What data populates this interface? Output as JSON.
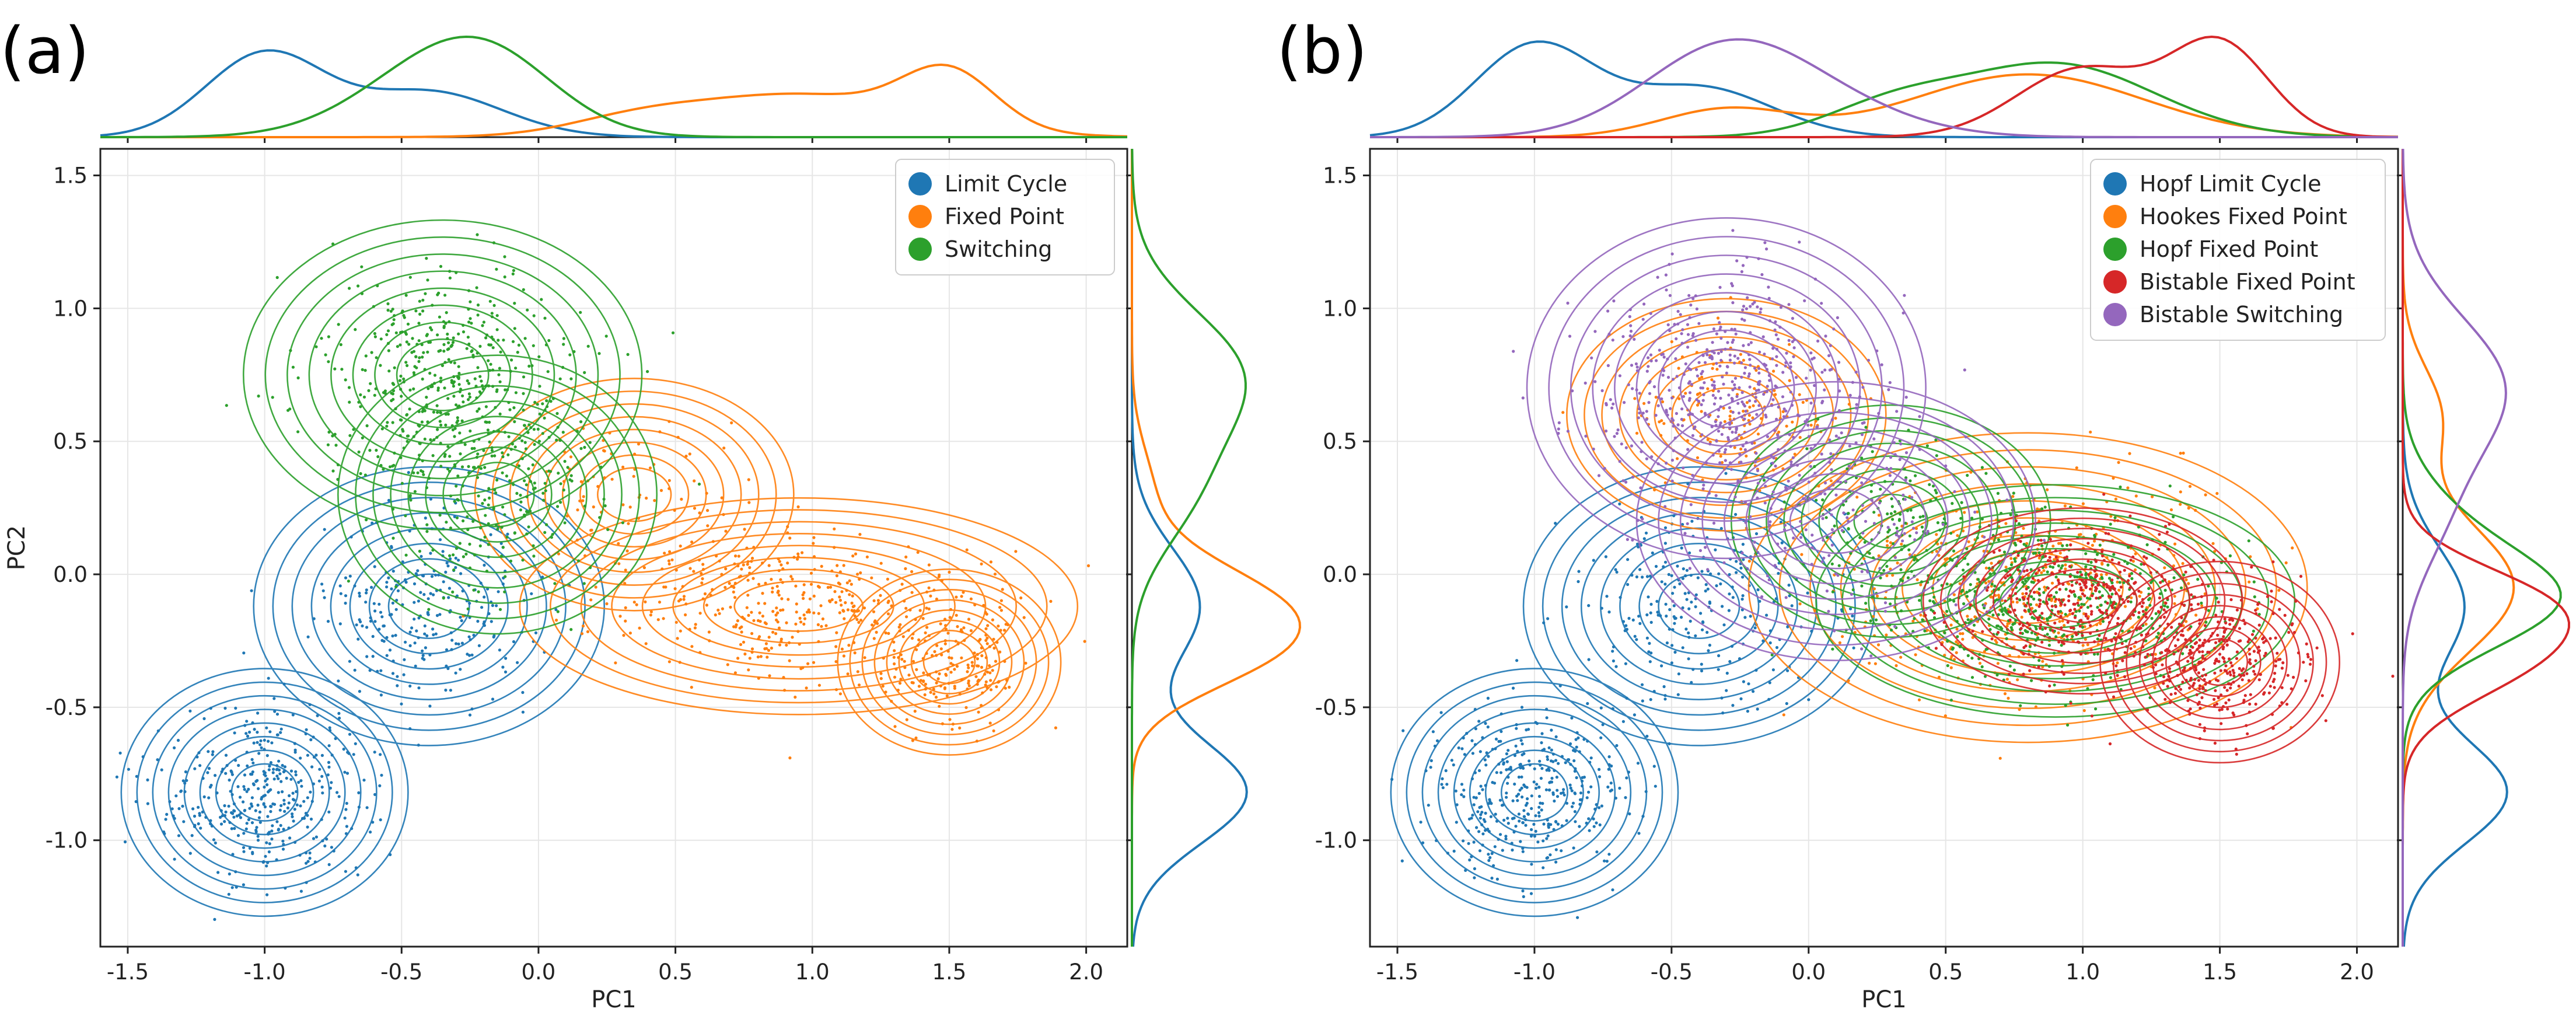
{
  "chart_data": [
    {
      "type": "scatter",
      "panel_label": "(a)",
      "xlabel": "PC1",
      "ylabel": "PC2",
      "xlim": [
        -1.6,
        2.15
      ],
      "ylim": [
        -1.4,
        1.6
      ],
      "x_ticks": [
        "-1.5",
        "-1.0",
        "-0.5",
        "0.0",
        "0.5",
        "1.0",
        "1.5",
        "2.0"
      ],
      "y_ticks": [
        "-1.0",
        "-0.5",
        "0.0",
        "0.5",
        "1.0",
        "1.5"
      ],
      "grid": true,
      "legend_position": "top-right",
      "overlay": "density contours with marginal KDE curves on top and right",
      "series": [
        {
          "name": "Limit Cycle",
          "color": "#1f77b4",
          "clusters": [
            {
              "x": -1.0,
              "y": -0.82,
              "sx": 0.18,
              "sy": 0.16,
              "w": 0.6
            },
            {
              "x": -0.4,
              "y": -0.12,
              "sx": 0.22,
              "sy": 0.18,
              "w": 0.4
            }
          ],
          "kde_x_peaks": [
            -1.05,
            -0.45
          ],
          "kde_y_peaks": [
            -0.85,
            -0.1
          ]
        },
        {
          "name": "Fixed Point",
          "color": "#ff7f0e",
          "clusters": [
            {
              "x": 0.95,
              "y": -0.12,
              "sx": 0.35,
              "sy": 0.14,
              "w": 0.6
            },
            {
              "x": 1.5,
              "y": -0.33,
              "sx": 0.14,
              "sy": 0.12,
              "w": 0.3
            },
            {
              "x": 0.35,
              "y": 0.3,
              "sx": 0.2,
              "sy": 0.15,
              "w": 0.1
            }
          ],
          "kde_x_peaks": [
            0.95,
            1.5
          ],
          "kde_y_peaks": [
            -0.1,
            -0.33
          ]
        },
        {
          "name": "Switching",
          "color": "#2ca02c",
          "clusters": [
            {
              "x": -0.35,
              "y": 0.75,
              "sx": 0.25,
              "sy": 0.2,
              "w": 0.7
            },
            {
              "x": -0.15,
              "y": 0.3,
              "sx": 0.2,
              "sy": 0.18,
              "w": 0.3
            }
          ],
          "kde_x_peaks": [
            -0.3
          ],
          "kde_y_peaks": [
            0.6
          ]
        }
      ]
    },
    {
      "type": "scatter",
      "panel_label": "(b)",
      "xlabel": "PC1",
      "ylabel": "",
      "xlim": [
        -1.6,
        2.15
      ],
      "ylim": [
        -1.4,
        1.6
      ],
      "x_ticks": [
        "-1.5",
        "-1.0",
        "-0.5",
        "0.0",
        "0.5",
        "1.0",
        "1.5",
        "2.0"
      ],
      "y_ticks": [
        "-1.0",
        "-0.5",
        "0.0",
        "0.5",
        "1.0",
        "1.5"
      ],
      "grid": true,
      "legend_position": "top-right",
      "overlay": "density contours with marginal KDE curves on top and right",
      "series": [
        {
          "name": "Hopf Limit Cycle",
          "color": "#1f77b4",
          "clusters": [
            {
              "x": -1.0,
              "y": -0.82,
              "sx": 0.18,
              "sy": 0.16,
              "w": 0.6
            },
            {
              "x": -0.4,
              "y": -0.12,
              "sx": 0.22,
              "sy": 0.18,
              "w": 0.4
            }
          ],
          "kde_x_peaks": [
            -1.0,
            -0.5
          ],
          "kde_y_peaks": [
            -0.85,
            -0.1
          ]
        },
        {
          "name": "Hookes Fixed Point",
          "color": "#ff7f0e",
          "clusters": [
            {
              "x": 0.8,
              "y": -0.05,
              "sx": 0.35,
              "sy": 0.2,
              "w": 0.8
            },
            {
              "x": -0.3,
              "y": 0.6,
              "sx": 0.2,
              "sy": 0.15,
              "w": 0.2
            }
          ],
          "kde_x_peaks": [
            0.9
          ],
          "kde_y_peaks": [
            -0.05
          ]
        },
        {
          "name": "Hopf Fixed Point",
          "color": "#2ca02c",
          "clusters": [
            {
              "x": 0.9,
              "y": -0.1,
              "sx": 0.3,
              "sy": 0.15,
              "w": 0.8
            },
            {
              "x": 0.3,
              "y": 0.2,
              "sx": 0.2,
              "sy": 0.15,
              "w": 0.2
            }
          ],
          "kde_x_peaks": [
            0.9
          ],
          "kde_y_peaks": [
            -0.1
          ]
        },
        {
          "name": "Bistable Fixed Point",
          "color": "#d62728",
          "clusters": [
            {
              "x": 1.5,
              "y": -0.33,
              "sx": 0.15,
              "sy": 0.13,
              "w": 0.5
            },
            {
              "x": 1.0,
              "y": -0.1,
              "sx": 0.2,
              "sy": 0.12,
              "w": 0.5
            }
          ],
          "kde_x_peaks": [
            1.55,
            1.05
          ],
          "kde_y_peaks": [
            -0.15
          ]
        },
        {
          "name": "Bistable Switching",
          "color": "#9467bd",
          "clusters": [
            {
              "x": -0.3,
              "y": 0.7,
              "sx": 0.25,
              "sy": 0.22,
              "w": 0.8
            },
            {
              "x": 0.1,
              "y": 0.2,
              "sx": 0.25,
              "sy": 0.18,
              "w": 0.2
            }
          ],
          "kde_x_peaks": [
            -0.25
          ],
          "kde_y_peaks": [
            0.55
          ]
        }
      ]
    }
  ]
}
